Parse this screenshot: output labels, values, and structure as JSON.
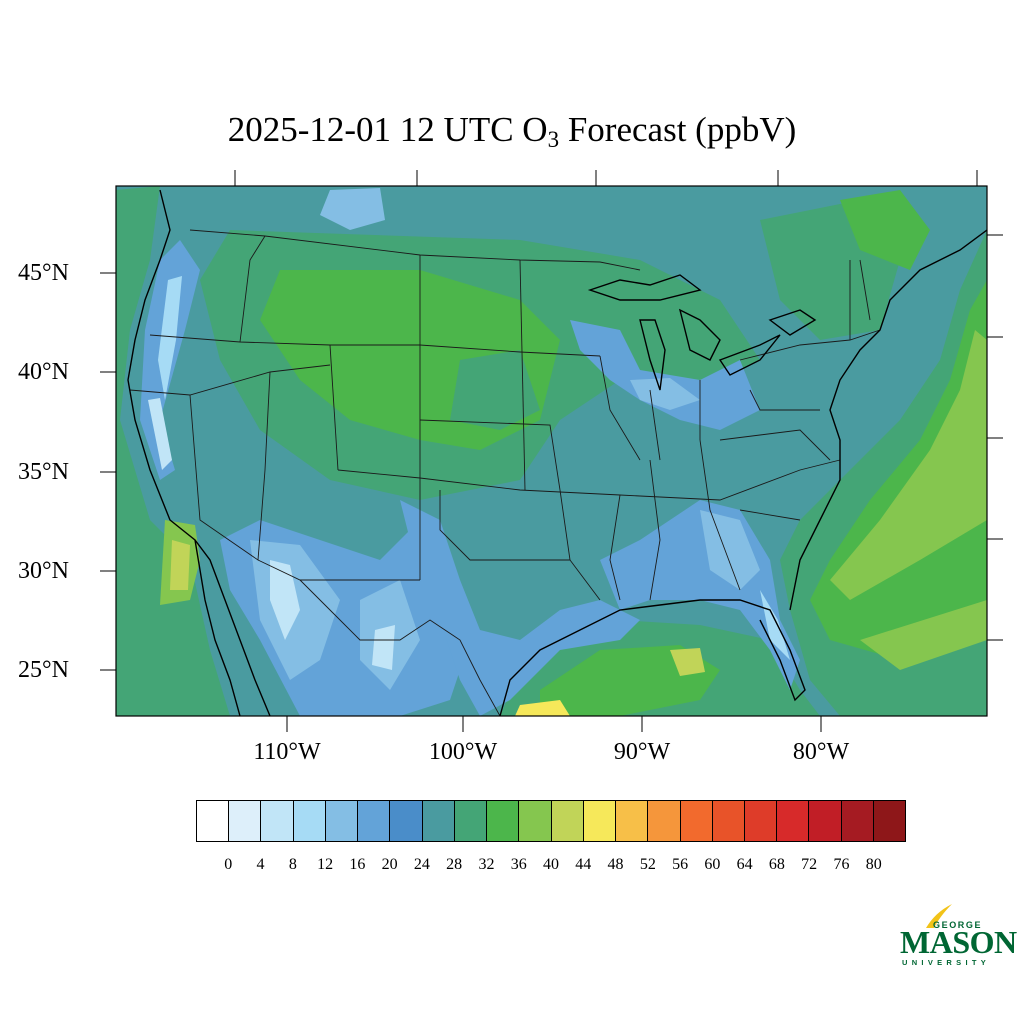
{
  "title": {
    "prefix": "2025-12-01 12 UTC O",
    "subscript": "3",
    "suffix": " Forecast (ppbV)"
  },
  "map": {
    "region": "Contiguous United States",
    "field": "Surface ozone (O3) forecast",
    "units": "ppbV",
    "lat_labels": [
      "45°N",
      "40°N",
      "35°N",
      "30°N",
      "25°N"
    ],
    "lon_labels": [
      "110°W",
      "100°W",
      "90°W",
      "80°W"
    ],
    "background_level": "24–28"
  },
  "colorbar": {
    "levels": [
      "0",
      "4",
      "8",
      "12",
      "16",
      "20",
      "24",
      "28",
      "32",
      "36",
      "40",
      "44",
      "48",
      "52",
      "56",
      "60",
      "64",
      "68",
      "72",
      "76",
      "80"
    ],
    "colors": [
      "#ffffff",
      "#ddeffa",
      "#c1e5f7",
      "#a6dbf5",
      "#84bee4",
      "#63a3d8",
      "#4a8dc9",
      "#4a9ba0",
      "#44a576",
      "#4cb64b",
      "#85c64f",
      "#c1d458",
      "#f6e85a",
      "#f7bf48",
      "#f5963b",
      "#f26a2d",
      "#e85329",
      "#de3c29",
      "#d72a2a",
      "#c11e26",
      "#a51b22",
      "#8e1719"
    ]
  },
  "logo": {
    "top": "GEORGE",
    "name": "MASON",
    "bottom": "UNIVERSITY"
  }
}
